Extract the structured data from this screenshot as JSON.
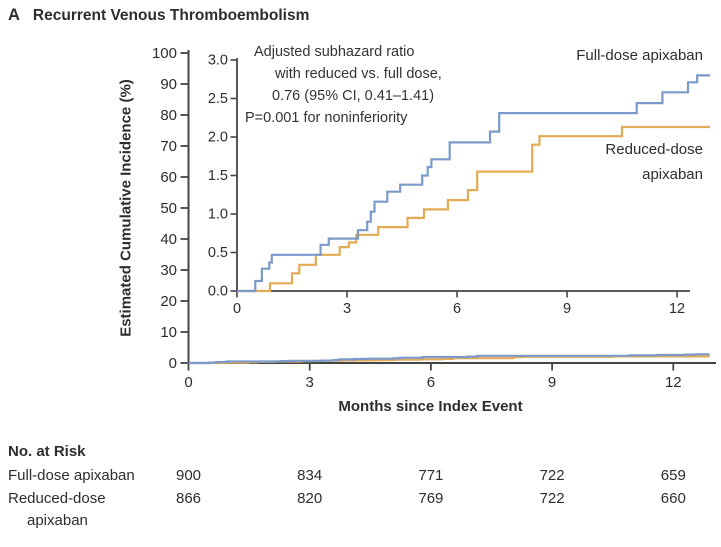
{
  "title": {
    "panel": "A",
    "text": "Recurrent Venous Thromboembolism"
  },
  "axis_labels": {
    "y": "Estimated Cumulative Incidence (%)",
    "x": "Months since Index Event"
  },
  "annotation": {
    "lines": [
      "Adjusted subhazard ratio",
      "with reduced vs. full dose,",
      "0.76 (95% CI, 0.41–1.41)",
      "P=0.001 for noninferiority"
    ]
  },
  "series_labels": {
    "full": "Full-dose apixaban",
    "reduced_line1": "Reduced-dose",
    "reduced_line2": "apixaban"
  },
  "risk_table": {
    "title": "No. at Risk",
    "rows": [
      {
        "label": "Full-dose apixaban",
        "label_line2": "",
        "values": [
          "900",
          "834",
          "771",
          "722",
          "659"
        ]
      },
      {
        "label": "Reduced-dose",
        "label_line2": "apixaban",
        "values": [
          "866",
          "820",
          "769",
          "722",
          "660"
        ]
      }
    ]
  },
  "chart_data": {
    "type": "line",
    "subtype": "cumulative-incidence-step-curves-with-inset",
    "title": "Recurrent Venous Thromboembolism",
    "xlabel": "Months since Index Event",
    "ylabel": "Estimated Cumulative Incidence (%)",
    "grid": false,
    "main_axis": {
      "xlim": [
        0,
        12
      ],
      "ylim": [
        0,
        100
      ],
      "xticks": [
        0,
        3,
        6,
        9,
        12
      ],
      "yticks": [
        0,
        10,
        20,
        30,
        40,
        50,
        60,
        70,
        80,
        90,
        100
      ]
    },
    "inset_axis": {
      "xlim": [
        0,
        12
      ],
      "ylim": [
        0.0,
        3.0
      ],
      "xticks": [
        0,
        3,
        6,
        9,
        12
      ],
      "ytick_labels": [
        "0.0",
        "0.5",
        "1.0",
        "1.5",
        "2.0",
        "2.5",
        "3.0"
      ]
    },
    "x_end_months": 12.9,
    "annotation": "Adjusted subhazard ratio with reduced vs. full dose, 0.76 (95% CI, 0.41–1.41) P=0.001 for noninferiority",
    "colors": {
      "full_dose": "#7b9ac9",
      "reduced_dose": "#e3ab55",
      "axis": "#454545",
      "text": "#2d2d2d"
    },
    "series": [
      {
        "name": "Full-dose apixaban",
        "color": "#7b9ac9",
        "steps_month_pct": [
          [
            0,
            0
          ],
          [
            0.5,
            0.13
          ],
          [
            0.68,
            0.29
          ],
          [
            0.88,
            0.37
          ],
          [
            0.95,
            0.47
          ],
          [
            2.28,
            0.6
          ],
          [
            2.5,
            0.68
          ],
          [
            3.3,
            0.79
          ],
          [
            3.55,
            0.9
          ],
          [
            3.65,
            1.03
          ],
          [
            3.75,
            1.16
          ],
          [
            4.1,
            1.29
          ],
          [
            4.45,
            1.38
          ],
          [
            5.05,
            1.5
          ],
          [
            5.2,
            1.61
          ],
          [
            5.3,
            1.71
          ],
          [
            5.8,
            1.93
          ],
          [
            6.9,
            2.07
          ],
          [
            7.15,
            2.31
          ],
          [
            10.9,
            2.44
          ],
          [
            11.6,
            2.58
          ],
          [
            12.3,
            2.71
          ],
          [
            12.55,
            2.8
          ]
        ],
        "no_at_risk": [
          900,
          834,
          771,
          722,
          659
        ]
      },
      {
        "name": "Reduced-dose apixaban",
        "color": "#e3ab55",
        "steps_month_pct": [
          [
            0,
            0
          ],
          [
            0.9,
            0.1
          ],
          [
            1.5,
            0.23
          ],
          [
            1.7,
            0.34
          ],
          [
            2.15,
            0.47
          ],
          [
            2.8,
            0.57
          ],
          [
            3.05,
            0.63
          ],
          [
            3.25,
            0.73
          ],
          [
            3.85,
            0.83
          ],
          [
            4.65,
            0.95
          ],
          [
            5.1,
            1.06
          ],
          [
            5.75,
            1.18
          ],
          [
            6.3,
            1.31
          ],
          [
            6.55,
            1.55
          ],
          [
            8.05,
            1.9
          ],
          [
            8.25,
            2.01
          ],
          [
            10.5,
            2.13
          ]
        ],
        "no_at_risk": [
          866,
          820,
          769,
          722,
          660
        ]
      }
    ]
  }
}
